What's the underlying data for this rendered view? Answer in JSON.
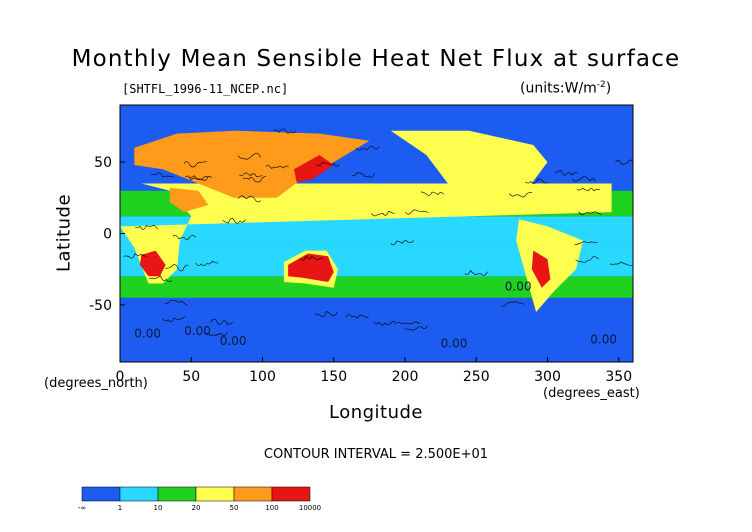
{
  "chart_data": {
    "type": "heatmap",
    "title": "Monthly Mean Sensible Heat Net Flux at surface",
    "subtitle": "[SHTFL_1996-11_NCEP.nc]",
    "units_label": "(units:W/m^-2)",
    "xlabel": "Longitude",
    "ylabel": "Latitude",
    "x_unit_label": "(degrees_east)",
    "y_unit_label": "(degrees_north)",
    "xlim": [
      0,
      360
    ],
    "ylim": [
      -90,
      90
    ],
    "x_ticks": [
      0,
      50,
      100,
      150,
      200,
      250,
      300,
      350
    ],
    "y_ticks": [
      50,
      0,
      -50
    ],
    "contour_interval_text": "CONTOUR INTERVAL = 2.500E+01",
    "contour_labels": [
      "0.00",
      "0.00",
      "0.00",
      "0.00",
      "0.00",
      "0.00"
    ],
    "colorbar": {
      "colors": [
        "#1c5cf0",
        "#28d8ff",
        "#1fd21f",
        "#ffff50",
        "#ff9a1a",
        "#e81515"
      ],
      "tick_labels": [
        "-∞",
        "1",
        "10",
        "20",
        "50",
        "100",
        "10000"
      ]
    }
  }
}
